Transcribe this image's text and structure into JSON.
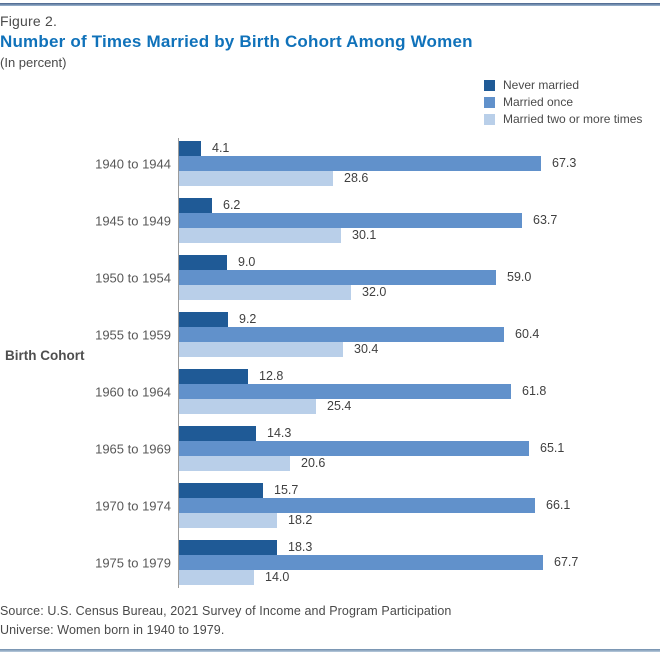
{
  "figure": {
    "label": "Figure 2.",
    "title": "Number of Times Married by Birth Cohort Among Women",
    "subtitle": "(In percent)"
  },
  "colors": {
    "title_blue": "#1072ba",
    "never_married": "#1f5a96",
    "married_once": "#6191cb",
    "married_two_plus": "#b9cfe9",
    "body_text": "#4a4a4a"
  },
  "chart_data": {
    "type": "bar",
    "orientation": "horizontal",
    "title": "Number of Times Married by Birth Cohort Among Women",
    "units": "percent",
    "ylabel": "Birth Cohort",
    "xlim": [
      0,
      70
    ],
    "grid": false,
    "legend_position": "top-right",
    "value_labels": true,
    "categories": [
      "1940 to 1944",
      "1945 to 1949",
      "1950 to 1954",
      "1955 to 1959",
      "1960 to 1964",
      "1965 to 1969",
      "1970 to 1974",
      "1975 to 1979"
    ],
    "series": [
      {
        "name": "Never married",
        "color": "#1f5a96",
        "values": [
          4.1,
          6.2,
          9.0,
          9.2,
          12.8,
          14.3,
          15.7,
          18.3
        ]
      },
      {
        "name": "Married once",
        "color": "#6191cb",
        "values": [
          67.3,
          63.7,
          59.0,
          60.4,
          61.8,
          65.1,
          66.1,
          67.7
        ]
      },
      {
        "name": "Married two or more times",
        "color": "#b9cfe9",
        "values": [
          28.6,
          30.1,
          32.0,
          30.4,
          25.4,
          20.6,
          18.2,
          14.0
        ]
      }
    ]
  },
  "footer": {
    "source": "Source: U.S. Census Bureau, 2021 Survey of Income and Program Participation",
    "universe": "Universe: Women born in 1940 to 1979."
  }
}
